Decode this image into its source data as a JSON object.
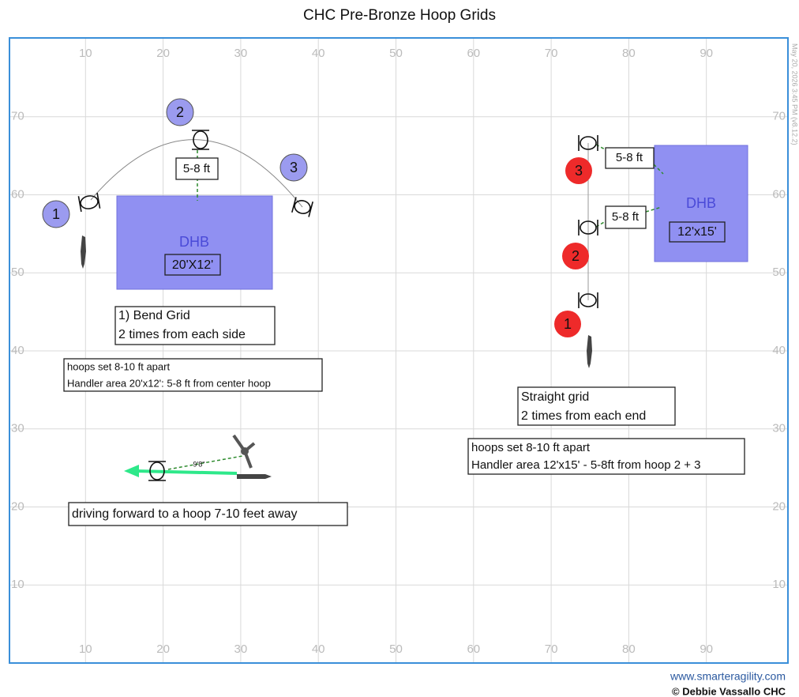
{
  "title": "CHC Pre-Bronze Hoop Grids",
  "timestamp": "May 20, 2026 3:45 PM (v8.12.2)",
  "grid": {
    "x_ticks": [
      10,
      20,
      30,
      40,
      50,
      60,
      70,
      80,
      90
    ],
    "y_ticks": [
      10,
      20,
      30,
      40,
      50,
      60,
      70
    ]
  },
  "left_course": {
    "numbers": [
      "1",
      "2",
      "3"
    ],
    "handler_box": {
      "label": "DHB",
      "size": "20'X12'"
    },
    "distance": "5-8 ft",
    "notes": [
      "1) Bend Grid",
      "2 times from each side"
    ],
    "details": [
      "hoops set 8-10 ft apart",
      "Handler area 20'x12': 5-8 ft from center hoop"
    ]
  },
  "right_course": {
    "numbers": [
      "1",
      "2",
      "3"
    ],
    "handler_box": {
      "label": "DHB",
      "size": "12'x15'"
    },
    "distances": [
      "5-8 ft",
      "5-8 ft"
    ],
    "notes": [
      "Straight grid",
      "2 times from each end"
    ],
    "details": [
      "hoops set 8-10 ft apart",
      "Handler area 12'x15' - 5-8ft from hoop 2 + 3"
    ]
  },
  "driving": {
    "distance": "9'8\"",
    "caption": "driving forward to a hoop 7-10 feet away"
  },
  "footer": {
    "website": "www.smarteragility.com",
    "copyright": "© Debbie Vassallo CHC"
  }
}
